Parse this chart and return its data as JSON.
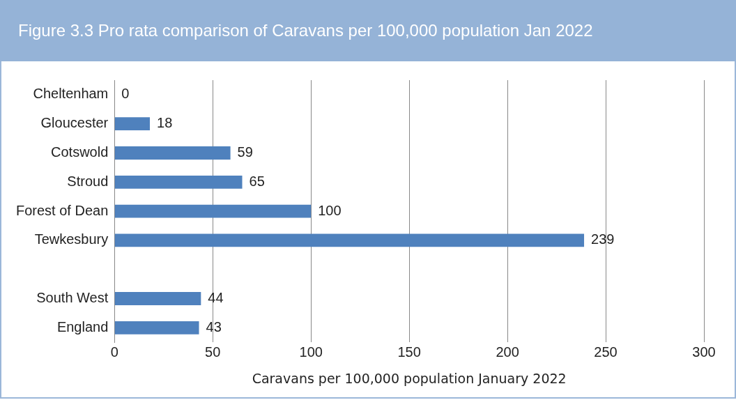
{
  "chart_data": {
    "type": "bar",
    "orientation": "horizontal",
    "title": "Figure 3.3 Pro rata comparison of Caravans per 100,000 population Jan 2022",
    "xlabel": "Caravans per 100,000 population January 2022",
    "categories": [
      "Cheltenham",
      "Gloucester",
      "Cotswold",
      "Stroud",
      "Forest of Dean",
      "Tewkesbury",
      null,
      "South West",
      "England"
    ],
    "values": [
      0,
      18,
      59,
      65,
      100,
      239,
      null,
      44,
      43
    ],
    "color": "#4f81bd",
    "data_labels": true,
    "xlim": [
      0,
      300
    ],
    "xticks": [
      0,
      50,
      100,
      150,
      200,
      250,
      300
    ],
    "grid": "x",
    "legend": false
  }
}
